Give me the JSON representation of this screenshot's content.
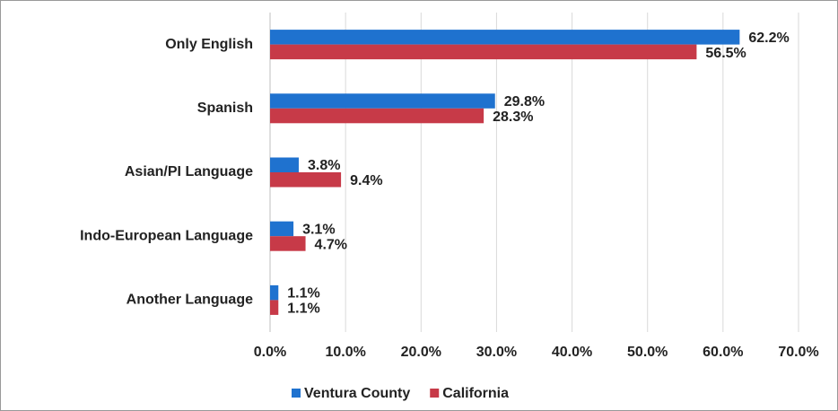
{
  "chart_data": {
    "type": "hbar",
    "categories": [
      "Only English",
      "Spanish",
      "Asian/PI Language",
      "Indo-European Language",
      "Another Language"
    ],
    "series": [
      {
        "name": "Ventura County",
        "color": "#1f72cf",
        "values": [
          62.2,
          29.8,
          3.8,
          3.1,
          1.1
        ],
        "value_labels": [
          "62.2%",
          "29.8%",
          "3.8%",
          "3.1%",
          "1.1%"
        ]
      },
      {
        "name": "California",
        "color": "#c73a48",
        "values": [
          56.5,
          28.3,
          9.4,
          4.7,
          1.1
        ],
        "value_labels": [
          "56.5%",
          "28.3%",
          "9.4%",
          "4.7%",
          "1.1%"
        ]
      }
    ],
    "xlim": [
      0,
      70
    ],
    "xticks": [
      {
        "value": 0,
        "label": "0.0%"
      },
      {
        "value": 10,
        "label": "10.0%"
      },
      {
        "value": 20,
        "label": "20.0%"
      },
      {
        "value": 30,
        "label": "30.0%"
      },
      {
        "value": 40,
        "label": "40.0%"
      },
      {
        "value": 50,
        "label": "50.0%"
      },
      {
        "value": 60,
        "label": "60.0%"
      },
      {
        "value": 70,
        "label": "70.0%"
      }
    ],
    "grid": true,
    "legend": "bottom"
  }
}
